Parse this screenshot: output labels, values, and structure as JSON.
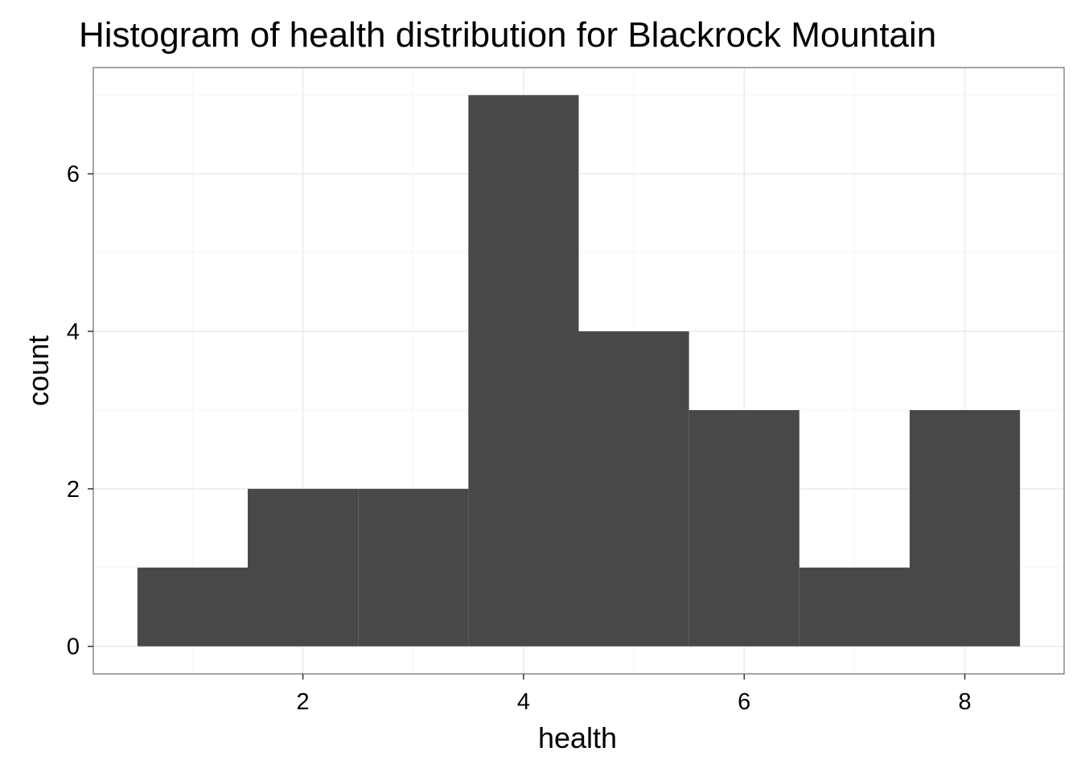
{
  "chart_data": {
    "type": "bar",
    "title": "Histogram of health distribution for Blackrock Mountain",
    "xlabel": "health",
    "ylabel": "count",
    "bins": [
      {
        "x_min": 0.5,
        "x_max": 1.5,
        "count": 1
      },
      {
        "x_min": 1.5,
        "x_max": 2.5,
        "count": 2
      },
      {
        "x_min": 2.5,
        "x_max": 3.5,
        "count": 2
      },
      {
        "x_min": 3.5,
        "x_max": 4.5,
        "count": 7
      },
      {
        "x_min": 4.5,
        "x_max": 5.5,
        "count": 4
      },
      {
        "x_min": 5.5,
        "x_max": 6.5,
        "count": 3
      },
      {
        "x_min": 6.5,
        "x_max": 7.5,
        "count": 1
      },
      {
        "x_min": 7.5,
        "x_max": 8.5,
        "count": 3
      }
    ],
    "x_ticks": [
      2,
      4,
      6,
      8
    ],
    "y_ticks": [
      0,
      2,
      4,
      6
    ],
    "xlim": [
      0.1,
      8.9
    ],
    "ylim": [
      -0.35,
      7.35
    ],
    "grid": true,
    "colors": {
      "bar": "#484848",
      "panel_border": "#7f7f7f",
      "grid_major": "#ebebeb",
      "grid_minor": "#f5f5f5",
      "tick": "#333333"
    }
  }
}
